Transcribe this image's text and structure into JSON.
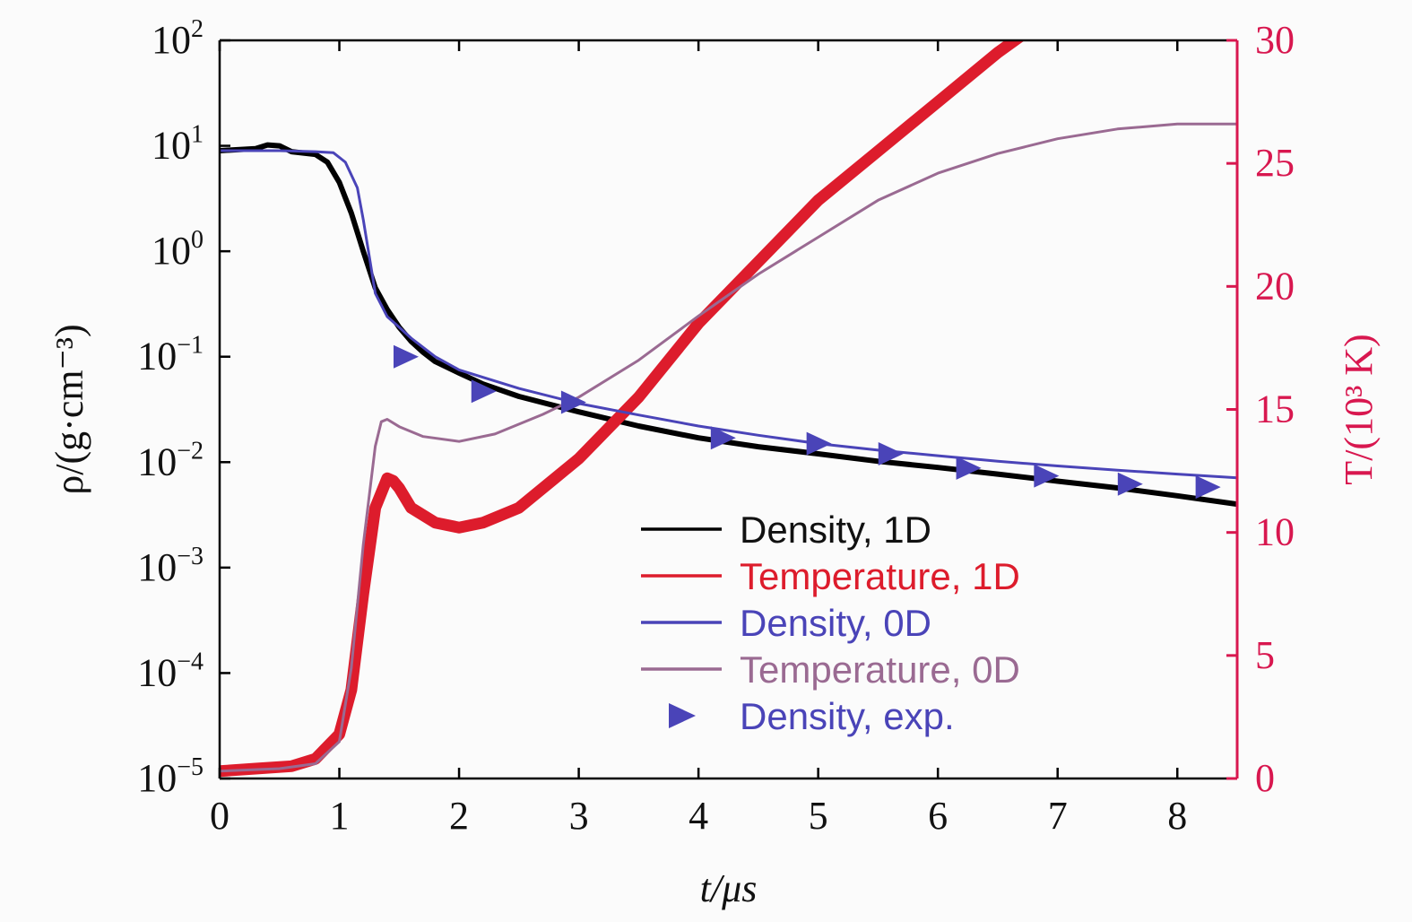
{
  "chart_data": {
    "type": "line",
    "xlabel": "t/μs",
    "ylabel_left": "ρ/(g·cm⁻³)",
    "ylabel_right": "T/(10³ K)",
    "xlim": [
      0,
      8.5
    ],
    "ylim_left": [
      -5,
      2
    ],
    "ylim_right": [
      0,
      30
    ],
    "yscale_left": "log10",
    "x_ticks": [
      "0",
      "1",
      "2",
      "3",
      "4",
      "5",
      "6",
      "7",
      "8"
    ],
    "y_left_ticks": [
      {
        "base": "10",
        "exp": "2"
      },
      {
        "base": "10",
        "exp": "1"
      },
      {
        "base": "10",
        "exp": "0"
      },
      {
        "base": "10",
        "exp": "−1"
      },
      {
        "base": "10",
        "exp": "−2"
      },
      {
        "base": "10",
        "exp": "−3"
      },
      {
        "base": "10",
        "exp": "−4"
      },
      {
        "base": "10",
        "exp": "−5"
      }
    ],
    "y_right_ticks": [
      "0",
      "5",
      "10",
      "15",
      "20",
      "25",
      "30"
    ],
    "legend_position": "center-right",
    "colors": {
      "density_1d": "#000000",
      "temperature_1d": "#dd1c2c",
      "density_0d": "#4a44b8",
      "temperature_0d": "#9a6a92",
      "density_exp": "#4a44b8",
      "right_axis": "#d8174f"
    },
    "series": [
      {
        "name": "Density, 1D",
        "axis": "left",
        "x": [
          0,
          0.3,
          0.4,
          0.5,
          0.6,
          0.8,
          0.9,
          1.0,
          1.1,
          1.2,
          1.3,
          1.4,
          1.5,
          1.6,
          1.7,
          1.8,
          2.0,
          2.2,
          2.5,
          3.0,
          3.5,
          4.0,
          4.5,
          5.0,
          5.5,
          6.0,
          6.5,
          7.0,
          7.5,
          8.0,
          8.5
        ],
        "y": [
          9.0,
          9.4,
          10.2,
          10.0,
          8.8,
          8.3,
          7.0,
          4.5,
          2.3,
          1.0,
          0.45,
          0.28,
          0.19,
          0.14,
          0.11,
          0.09,
          0.07,
          0.055,
          0.042,
          0.03,
          0.022,
          0.017,
          0.014,
          0.012,
          0.0102,
          0.0089,
          0.0077,
          0.0066,
          0.0057,
          0.0048,
          0.004
        ]
      },
      {
        "name": "Temperature, 1D",
        "axis": "right",
        "x": [
          0,
          0.3,
          0.6,
          0.8,
          1.0,
          1.1,
          1.2,
          1.3,
          1.4,
          1.45,
          1.5,
          1.6,
          1.8,
          2.0,
          2.2,
          2.5,
          2.8,
          3.0,
          3.5,
          4.0,
          4.5,
          5.0,
          5.5,
          6.0,
          6.5,
          6.7
        ],
        "y": [
          0.3,
          0.4,
          0.5,
          0.8,
          1.8,
          3.6,
          7.5,
          11.0,
          12.2,
          12.1,
          11.8,
          11.0,
          10.4,
          10.2,
          10.4,
          11.0,
          12.2,
          13.0,
          15.5,
          18.5,
          21.0,
          23.5,
          25.5,
          27.5,
          29.5,
          30.2
        ]
      },
      {
        "name": "Density, 0D",
        "axis": "left",
        "x": [
          0,
          0.5,
          0.8,
          0.95,
          1.05,
          1.15,
          1.2,
          1.3,
          1.4,
          1.5,
          1.6,
          1.8,
          2.0,
          2.5,
          3.0,
          3.5,
          4.0,
          4.5,
          5.0,
          5.5,
          6.0,
          6.5,
          7.0,
          7.5,
          8.0,
          8.5
        ],
        "y": [
          9.0,
          9.0,
          8.8,
          8.6,
          7.0,
          4.0,
          2.0,
          0.4,
          0.24,
          0.19,
          0.15,
          0.1,
          0.075,
          0.05,
          0.036,
          0.028,
          0.022,
          0.018,
          0.015,
          0.013,
          0.0115,
          0.0102,
          0.0092,
          0.0084,
          0.0077,
          0.0071
        ]
      },
      {
        "name": "Temperature, 0D",
        "axis": "right",
        "x": [
          0,
          0.5,
          0.8,
          1.0,
          1.1,
          1.2,
          1.3,
          1.35,
          1.4,
          1.5,
          1.7,
          2.0,
          2.3,
          2.7,
          3.0,
          3.5,
          4.0,
          4.5,
          5.0,
          5.5,
          6.0,
          6.5,
          7.0,
          7.5,
          8.0,
          8.5
        ],
        "y": [
          0.3,
          0.4,
          0.6,
          1.5,
          4.5,
          9.5,
          13.5,
          14.5,
          14.6,
          14.3,
          13.9,
          13.7,
          14.0,
          14.8,
          15.5,
          17.0,
          18.8,
          20.5,
          22.0,
          23.5,
          24.6,
          25.4,
          26.0,
          26.4,
          26.6,
          26.6
        ]
      }
    ],
    "experimental": {
      "name": "Density, exp.",
      "axis": "left",
      "marker": "right-triangle",
      "x": [
        1.55,
        2.2,
        2.95,
        4.2,
        5.0,
        5.6,
        6.25,
        6.9,
        7.6,
        8.25
      ],
      "y": [
        0.1,
        0.047,
        0.037,
        0.017,
        0.015,
        0.012,
        0.0088,
        0.0074,
        0.0062,
        0.0058
      ]
    }
  }
}
